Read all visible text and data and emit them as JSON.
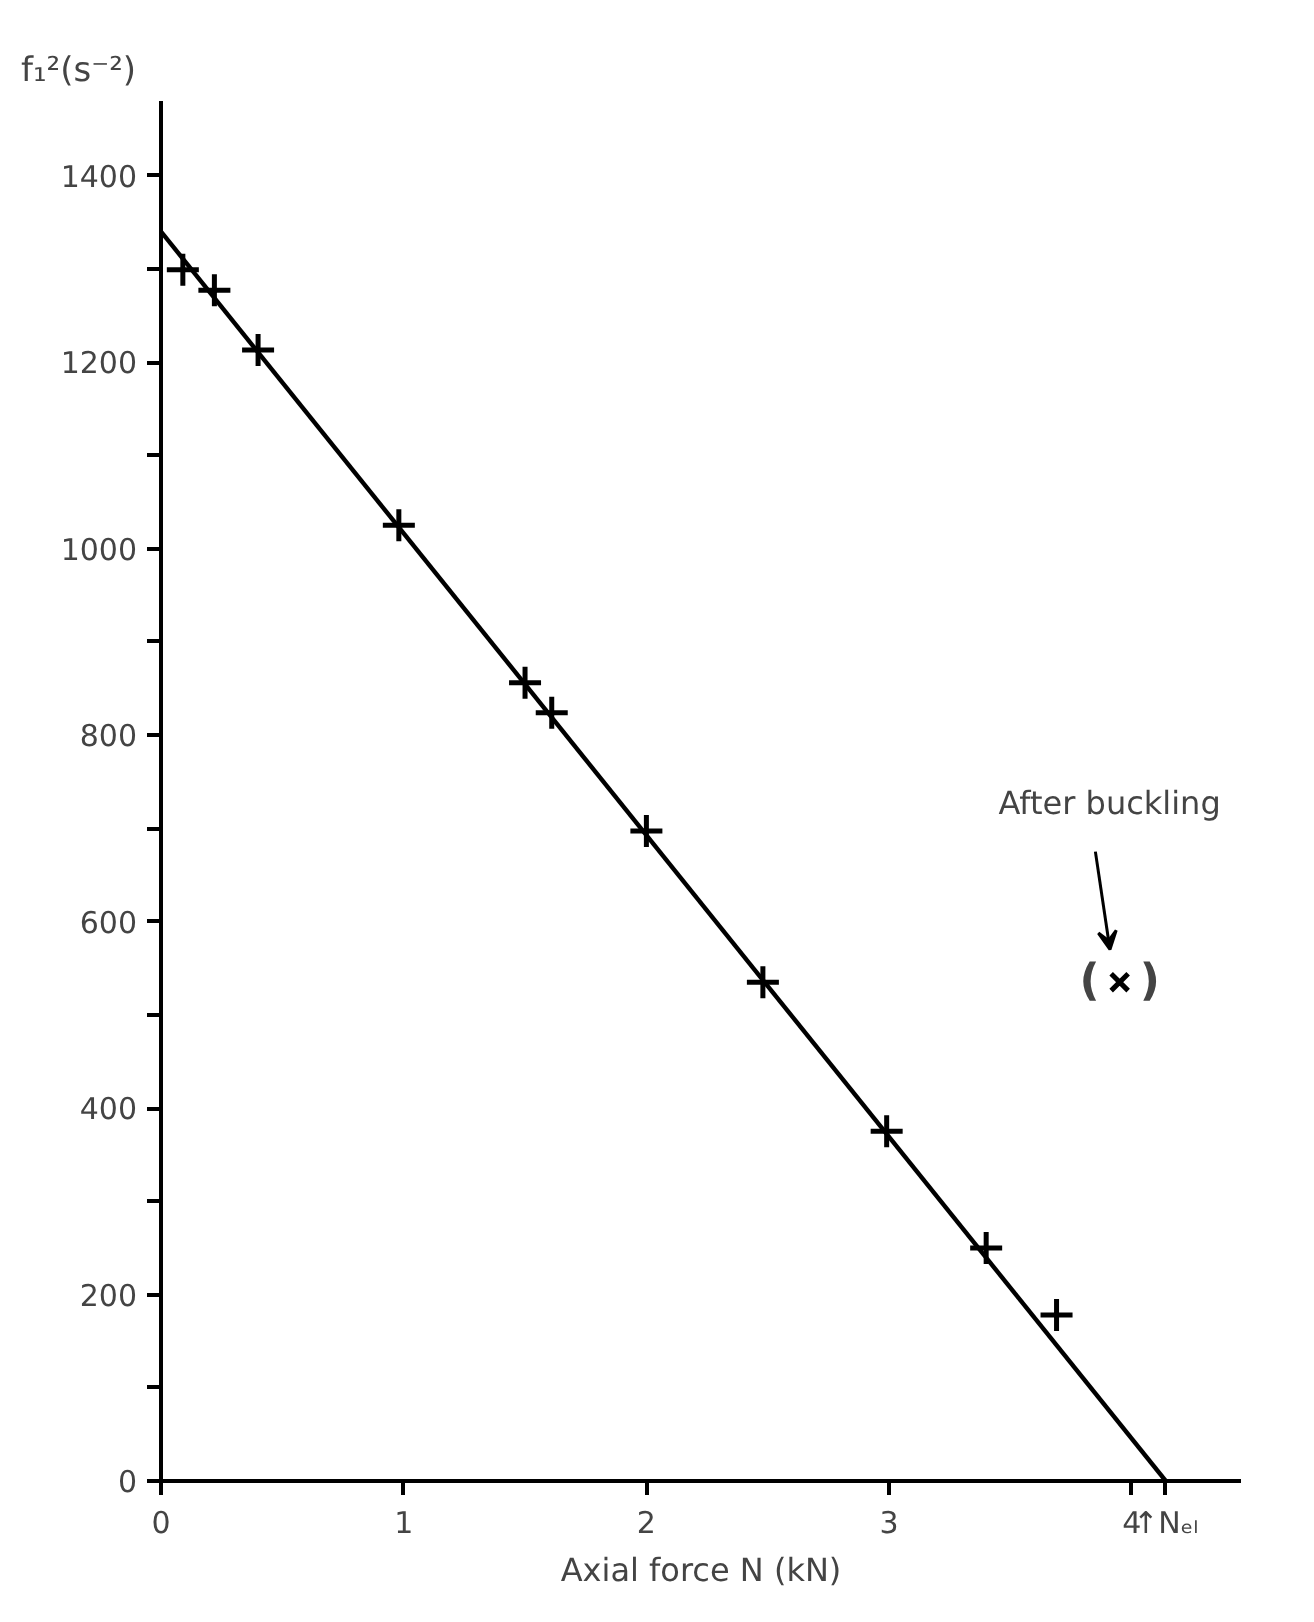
{
  "chart_data": {
    "type": "scatter",
    "xlabel": "Axial force N (kN)",
    "ylabel": "f₁²(s⁻²)",
    "xlim": [
      0,
      4.45
    ],
    "ylim": [
      0,
      1480
    ],
    "xticks": [
      0,
      1,
      2,
      3,
      4,
      {
        "value": 4.14,
        "label": "↑Nₑₗ"
      }
    ],
    "yticks": [
      0,
      {
        "value": 100,
        "label": null
      },
      200,
      {
        "value": 300,
        "label": null
      },
      400,
      {
        "value": 500,
        "label": null
      },
      600,
      {
        "value": 700,
        "label": null
      },
      800,
      {
        "value": 900,
        "label": null
      },
      1000,
      {
        "value": 1100,
        "label": null
      },
      1200,
      {
        "value": 1300,
        "label": null
      },
      1400
    ],
    "grid": false,
    "marker": "cross",
    "series": [
      {
        "color": "#000000",
        "x": [
          0.09,
          0.22,
          0.4,
          0.98,
          1.5,
          1.61,
          2.0,
          2.48,
          2.99,
          3.4,
          3.69
        ],
        "values": [
          1299,
          1277,
          1213,
          1025,
          856,
          824,
          697,
          535,
          375,
          250,
          178
        ]
      },
      {
        "name": "After buckling",
        "color": "#000000",
        "x": [
          3.95
        ],
        "values": [
          535
        ]
      },
      {
        "type": "line",
        "marker": "none",
        "color": "#000000",
        "x": [
          0,
          4.14
        ],
        "values": [
          1340,
          0
        ]
      }
    ],
    "annotations": [
      "(",
      ")"
    ]
  }
}
